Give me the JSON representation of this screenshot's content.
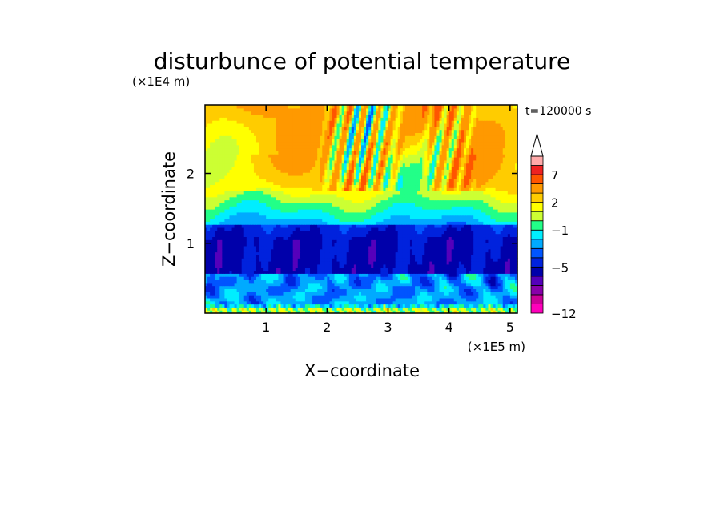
{
  "chart_data": {
    "type": "heatmap",
    "title": "disturbunce of potential temperature",
    "time_label": "t=120000 s",
    "xlabel": "X−coordinate",
    "ylabel": "Z−coordinate",
    "x_unit": "(×1E5 m)",
    "y_unit": "(×1E4 m)",
    "xlim": [
      0,
      5.12
    ],
    "ylim": [
      0,
      2.98
    ],
    "x_ticks": [
      1,
      2,
      3,
      4,
      5
    ],
    "x_tick_labels": [
      "1",
      "2",
      "3",
      "4",
      "5"
    ],
    "y_ticks": [
      1,
      2
    ],
    "y_tick_labels": [
      "1",
      "2"
    ],
    "colorbar": {
      "levels": [
        -12,
        -11,
        -9,
        -7,
        -6,
        -5,
        -4,
        -3,
        -2,
        -1,
        0,
        1,
        2,
        3,
        5,
        7,
        9,
        11
      ],
      "colors": [
        "#ff00bb",
        "#cc0099",
        "#8800aa",
        "#5500bb",
        "#0000aa",
        "#0022dd",
        "#0055ff",
        "#00aaff",
        "#00eeff",
        "#22ff88",
        "#ccff33",
        "#ffff00",
        "#ffcc00",
        "#ff9900",
        "#ff5500",
        "#ee2222",
        "#ffaaaa"
      ],
      "labels": [
        {
          "value": -12,
          "text": "−12"
        },
        {
          "value": -5,
          "text": "−5"
        },
        {
          "value": -1,
          "text": "−1"
        },
        {
          "value": 2,
          "text": "2"
        },
        {
          "value": 7,
          "text": "7"
        }
      ],
      "extend": "max"
    },
    "fields": {
      "x_resolution": 128,
      "y_resolution": 68,
      "lowest_layer": {
        "z_range": [
          0,
          0.12
        ],
        "value_range": [
          0,
          1.5
        ]
      },
      "lower_blue_band": {
        "z_range": [
          0.12,
          0.55
        ],
        "value_range": [
          -5,
          -1
        ]
      },
      "deep_blue_band": {
        "z_range": [
          0.55,
          1.25
        ],
        "value": -5
      },
      "transition_band": {
        "z_range": [
          1.25,
          1.75
        ],
        "value_range": [
          -1,
          1
        ]
      },
      "upper_warm_layer": {
        "z_range": [
          1.75,
          2.98
        ],
        "value_range": [
          1,
          5
        ]
      },
      "wave_fans": [
        {
          "x_range": [
            1.8,
            3.3
          ],
          "z_range": [
            1.5,
            2.98
          ],
          "amplitude": 4
        },
        {
          "x_range": [
            3.5,
            4.5
          ],
          "z_range": [
            1.5,
            2.98
          ],
          "amplitude": 3
        }
      ]
    }
  }
}
